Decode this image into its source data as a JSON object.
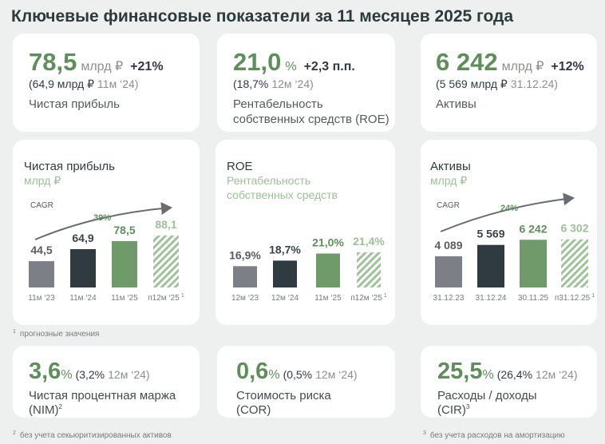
{
  "title": "Ключевые финансовые показатели за 11 месяцев 2025 года",
  "top_cards": [
    {
      "value": "78,5",
      "unit": "млрд ₽",
      "unit_color": "#8c8f8c",
      "change": "+21%",
      "prev": "(64,9 млрд ₽",
      "prev_period": "11м ‘24)",
      "label_lines": [
        "Чистая прибыль"
      ]
    },
    {
      "value": "21,0",
      "unit": "%",
      "unit_color": "#5e8f5a",
      "change": "+2,3 п.п.",
      "prev": "(18,7%",
      "prev_period": "12м ‘24)",
      "label_lines": [
        "Рентабельность",
        "собственных средств (ROE)"
      ]
    },
    {
      "value": "6 242",
      "unit": "млрд ₽",
      "unit_color": "#8c8f8c",
      "change": "+12%",
      "prev": "(5 569 млрд ₽",
      "prev_period": "31.12.24)",
      "label_lines": [
        "Активы"
      ]
    }
  ],
  "chart_data": [
    {
      "type": "bar",
      "title": "Чистая прибыль",
      "subtitle": [
        "млрд ₽"
      ],
      "annotation_label": "CAGR",
      "annotation": "39%",
      "categories": [
        "11м ‘23",
        "11м ‘24",
        "11м ‘25",
        "п12м ‘25"
      ],
      "values": [
        44.5,
        64.9,
        78.5,
        88.1
      ],
      "value_labels": [
        "44,5",
        "64,9",
        "78,5",
        "88,1"
      ],
      "colors": [
        "#7d7f86",
        "#2f3b41",
        "#6f9b6a",
        "#9fc49a"
      ],
      "label_colors": [
        "#5a5c60",
        "#3a4448",
        "#5e8f5a",
        "#9cc197"
      ],
      "hatched": [
        3
      ],
      "category_note": "1",
      "ylim": [
        0,
        100
      ]
    },
    {
      "type": "bar",
      "title": "ROE",
      "subtitle": [
        "Рентабельность",
        "собственных средств"
      ],
      "categories": [
        "12м ‘23",
        "12м ‘24",
        "11м ‘25",
        "п12м ‘25"
      ],
      "values": [
        16.9,
        18.7,
        21.0,
        21.4
      ],
      "value_labels": [
        "16,9%",
        "18,7%",
        "21,0%",
        "21,4%"
      ],
      "colors": [
        "#7d7f86",
        "#2f3b41",
        "#6f9b6a",
        "#9fc49a"
      ],
      "label_colors": [
        "#5a5c60",
        "#3a4448",
        "#5e8f5a",
        "#9cc197"
      ],
      "hatched": [
        3
      ],
      "category_note": "1",
      "ylim": [
        10,
        25
      ]
    },
    {
      "type": "bar",
      "title": "Активы",
      "subtitle": [
        "млрд ₽"
      ],
      "annotation_label": "CAGR",
      "annotation": "24%",
      "categories": [
        "31.12.23",
        "31.12.24",
        "30.11.25",
        "п31.12.25"
      ],
      "values": [
        4089,
        5569,
        6242,
        6302
      ],
      "value_labels": [
        "4 089",
        "5 569",
        "6 242",
        "6 302"
      ],
      "colors": [
        "#7d7f86",
        "#2f3b41",
        "#6f9b6a",
        "#9fc49a"
      ],
      "label_colors": [
        "#5a5c60",
        "#3a4448",
        "#5e8f5a",
        "#9cc197"
      ],
      "hatched": [
        3
      ],
      "category_note": "1",
      "ylim": [
        0,
        7000
      ]
    }
  ],
  "footnotes": [
    {
      "mark": "1",
      "text": "прогнозные значения"
    },
    {
      "mark": "2",
      "text": "без учета секьюритизированных активов"
    },
    {
      "mark": "3",
      "text": "без учета расходов на амортизацию"
    }
  ],
  "bottom_cards": [
    {
      "value": "3,6",
      "unit": "%",
      "prev": "(3,2%",
      "prev_period": "12м ‘24)",
      "label_lines": [
        "Чистая процентная маржа",
        "(NIM)"
      ],
      "note": "2"
    },
    {
      "value": "0,6",
      "unit": "%",
      "prev": "(0,5%",
      "prev_period": "12м ‘24)",
      "label_lines": [
        "Стоимость риска",
        "(COR)"
      ]
    },
    {
      "value": "25,5",
      "unit": "%",
      "prev": "(26,4%",
      "prev_period": "12м ‘24)",
      "label_lines": [
        "Расходы / доходы",
        "(CIR)"
      ],
      "note": "3"
    }
  ]
}
